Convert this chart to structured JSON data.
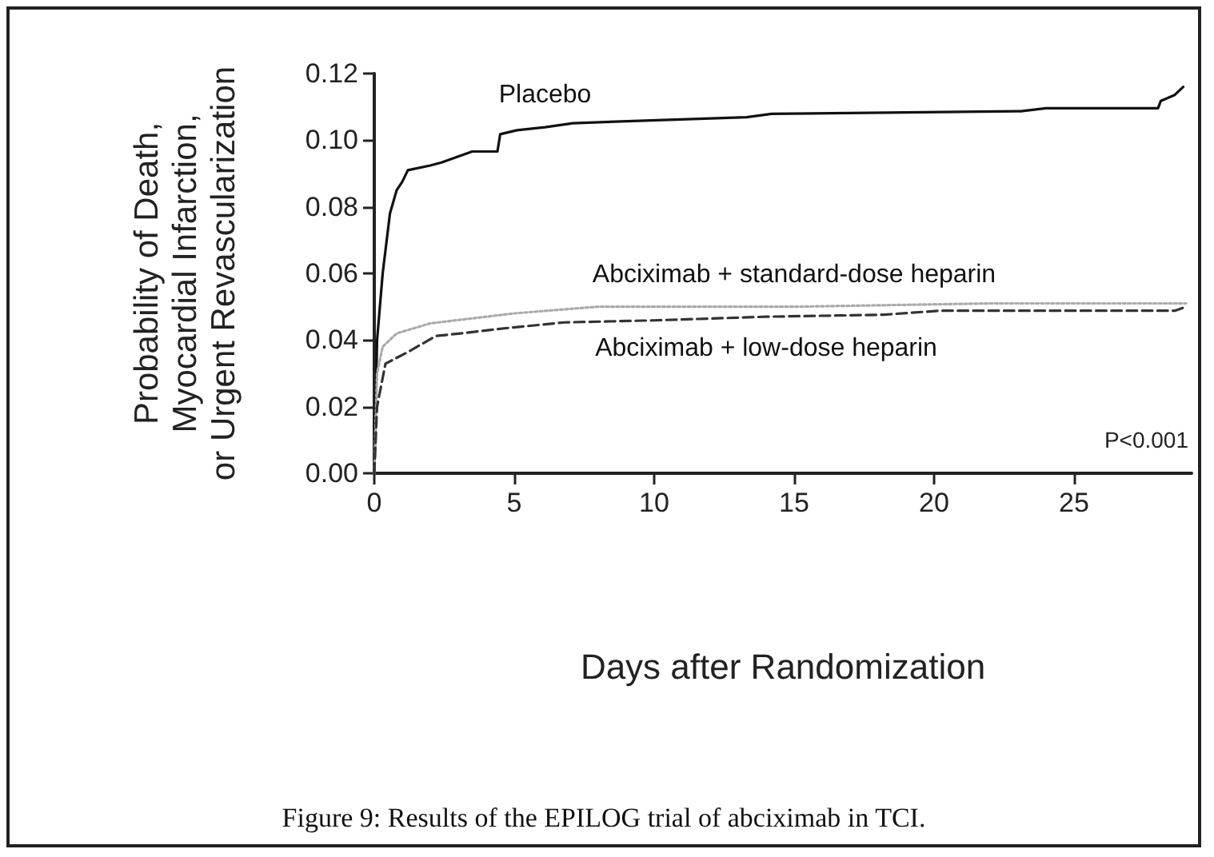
{
  "chart_data": {
    "type": "line",
    "xlabel": "Days after Randomization",
    "ylabel": "Probability of Death,\nMyocardial Infarction,\nor Urgent Revascularization",
    "annotations": [
      "P<0.001",
      "Figure 9: Results of the EPILOG trial of abciximab in TCI."
    ],
    "xlim": [
      0,
      29.2
    ],
    "xticks": [
      0,
      5,
      10,
      15,
      20,
      25
    ],
    "ylim": [
      0,
      0.12
    ],
    "yticks": [
      {
        "value": 0,
        "label": "0.00"
      },
      {
        "value": 0.02,
        "label": "0.02"
      },
      {
        "value": 0.04,
        "label": "0.04"
      },
      {
        "value": 0.06,
        "label": "0.06"
      },
      {
        "value": 0.08,
        "label": "0.08"
      },
      {
        "value": 0.1,
        "label": "0.10"
      },
      {
        "value": 0.12,
        "label": "0.12"
      }
    ],
    "grid": false,
    "legend": false,
    "marker": "none",
    "series": [
      {
        "name": "Placebo",
        "color": "#111111",
        "line_style": "solid",
        "x": [
          0,
          0.1,
          0.3,
          0.56,
          0.8,
          1.0,
          1.2,
          2.0,
          2.4,
          3.1,
          3.5,
          4.4,
          4.5,
          5.1,
          6.1,
          7.1,
          10.1,
          13.3,
          14.2,
          23.1,
          24.0,
          28.0,
          28.1,
          28.6,
          28.9
        ],
        "values": [
          0,
          0.04,
          0.06,
          0.078,
          0.085,
          0.0875,
          0.091,
          0.0924,
          0.0933,
          0.0954,
          0.0966,
          0.0966,
          0.1018,
          0.103,
          0.1039,
          0.1051,
          0.106,
          0.1069,
          0.1079,
          0.1087,
          0.1096,
          0.1096,
          0.1118,
          0.1136,
          0.116
        ]
      },
      {
        "name": "Abciximab + standard-dose heparin",
        "color": "#aaaaaa",
        "line_style": "dotted",
        "x": [
          0,
          0.1,
          0.3,
          0.8,
          2,
          5,
          8,
          15,
          22,
          29
        ],
        "values": [
          0,
          0.03,
          0.038,
          0.042,
          0.045,
          0.048,
          0.05,
          0.05,
          0.051,
          0.051
        ]
      },
      {
        "name": "Abciximab + low-dose heparin",
        "color": "#333333",
        "line_style": "dashed",
        "x": [
          0,
          0.1,
          0.4,
          1.2,
          2.2,
          3.2,
          4.4,
          6.8,
          10,
          14,
          18.2,
          20.2,
          28.6,
          29
        ],
        "values": [
          0,
          0.02,
          0.0329,
          0.0364,
          0.0412,
          0.0421,
          0.0433,
          0.0453,
          0.0459,
          0.047,
          0.0476,
          0.0488,
          0.0488,
          0.05
        ]
      }
    ]
  }
}
